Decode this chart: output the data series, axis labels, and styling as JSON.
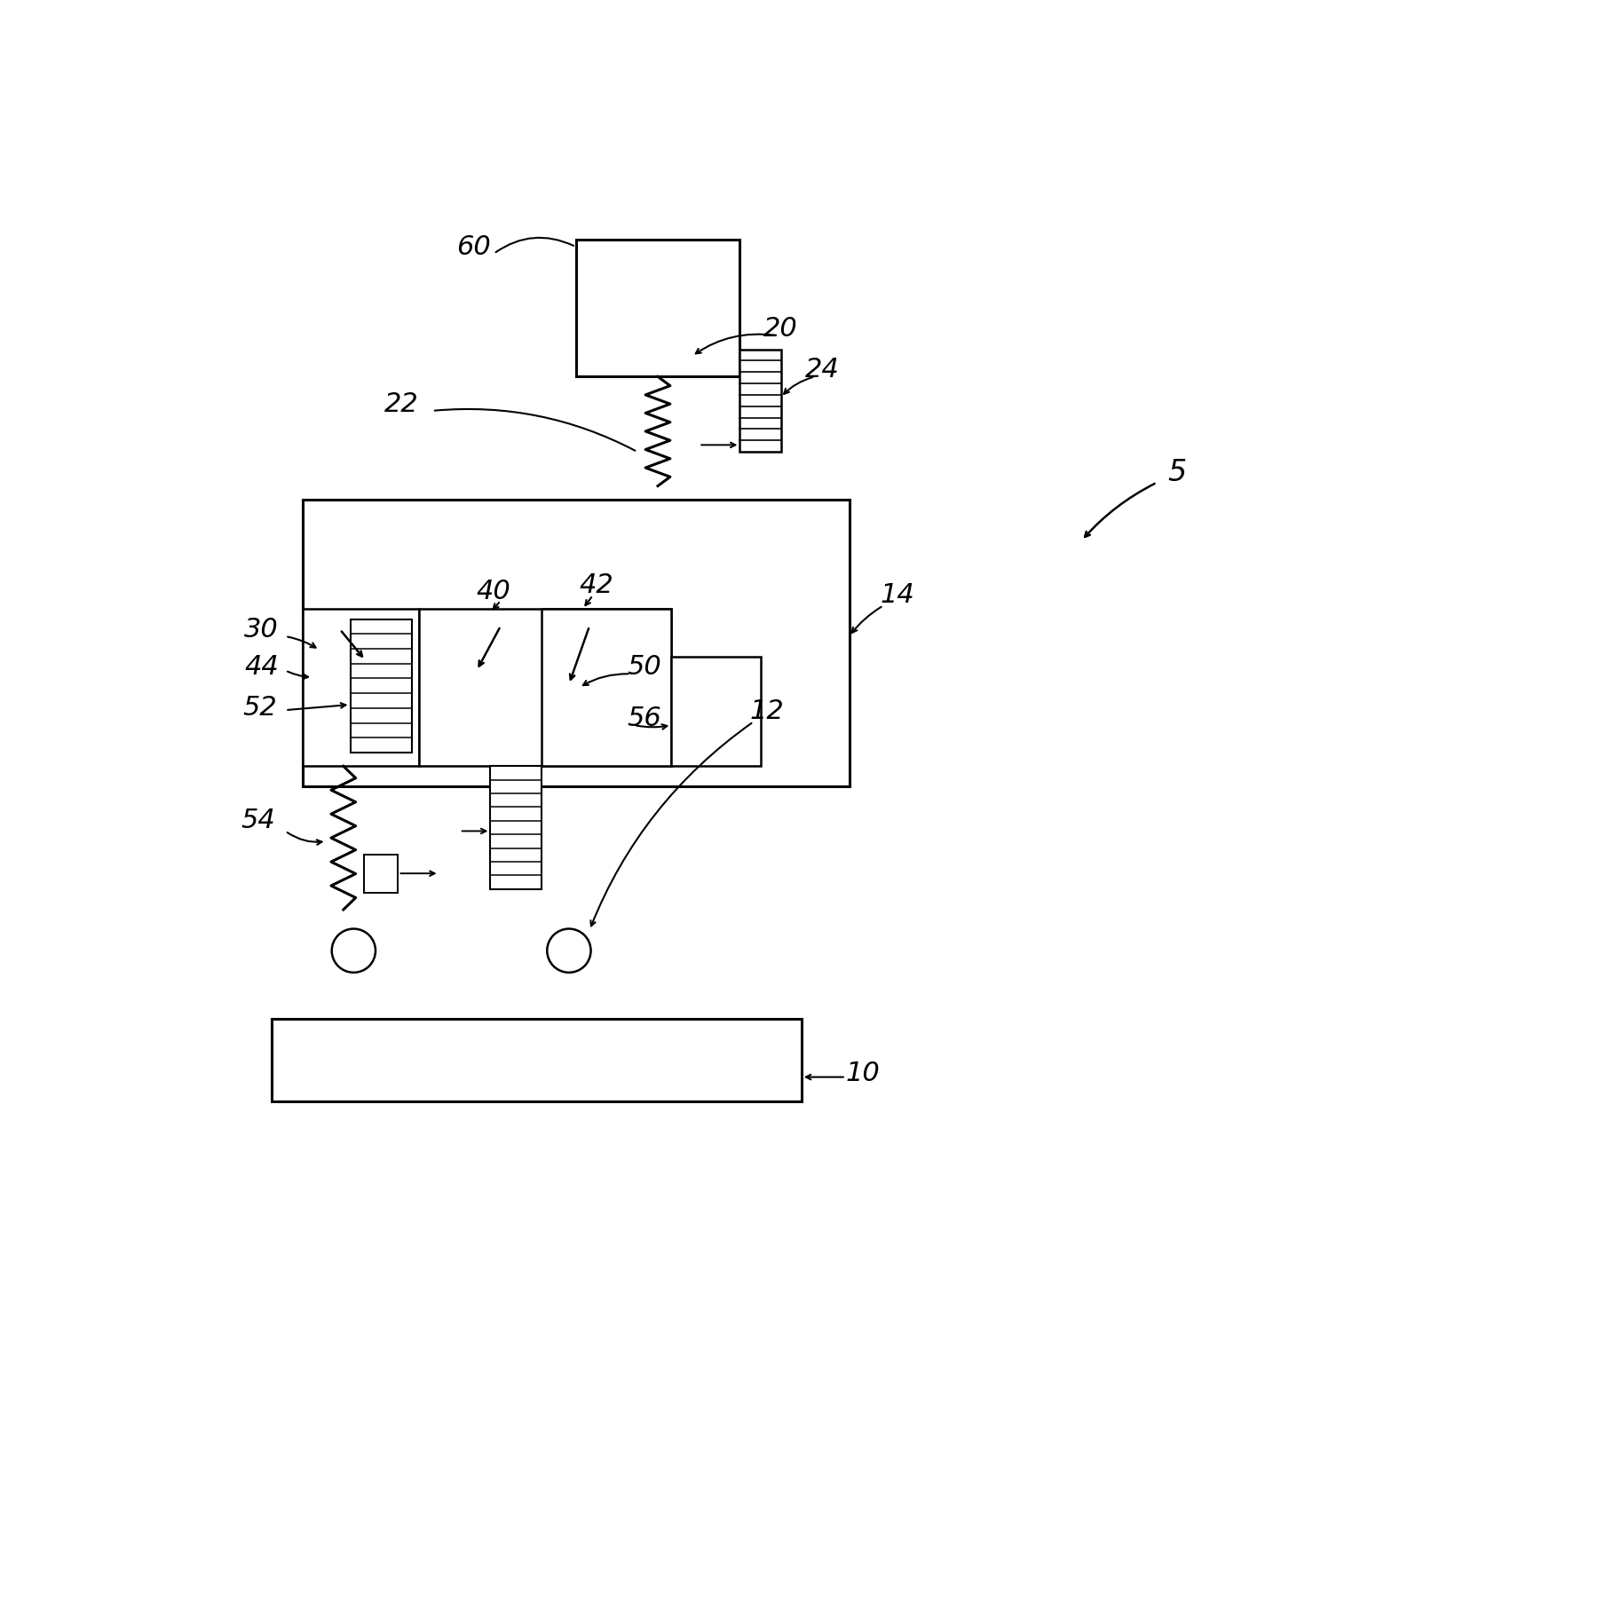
{
  "bg_color": "#ffffff",
  "line_color": "#000000",
  "fig_width": 18.26,
  "fig_height": 18.04,
  "lw_thick": 2.2,
  "lw_med": 1.8,
  "lw_thin": 1.4,
  "label_fontsize": 20
}
